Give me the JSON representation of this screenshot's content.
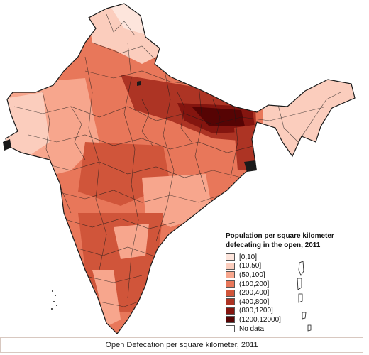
{
  "map": {
    "region": "India",
    "colors": {
      "no_data": "#ffffff",
      "c0_10": "#fde5dc",
      "c10_50": "#fbcdbd",
      "c50_100": "#f7a68d",
      "c100_200": "#e8775a",
      "c200_400": "#d0553a",
      "c400_800": "#ad3424",
      "c800_1200": "#84150f",
      "c1200_12000": "#560404",
      "boundary": "#1a1a1a"
    }
  },
  "legend": {
    "title": "Population per square kilometer defecating in the open, 2011",
    "items": [
      {
        "label": "[0,10]",
        "color": "#fde5dc"
      },
      {
        "label": "(10,50]",
        "color": "#fbcdbd"
      },
      {
        "label": "(50,100]",
        "color": "#f7a68d"
      },
      {
        "label": "(100,200]",
        "color": "#e8775a"
      },
      {
        "label": "(200,400]",
        "color": "#d0553a"
      },
      {
        "label": "(400,800]",
        "color": "#ad3424"
      },
      {
        "label": "(800,1200]",
        "color": "#84150f"
      },
      {
        "label": "(1200,12000]",
        "color": "#560404"
      },
      {
        "label": "No data",
        "color": "#ffffff"
      }
    ]
  },
  "caption": "Open Defecation per square kilometer, 2011"
}
